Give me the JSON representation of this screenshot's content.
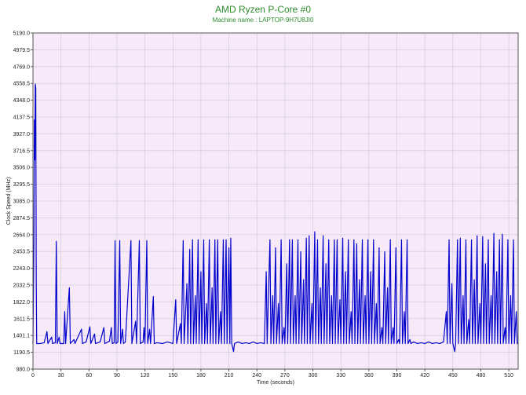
{
  "chart_data": {
    "type": "line",
    "title": "AMD Ryzen P-Core #0",
    "subtitle": "Machine name : LAPTOP-9H7U8JI0",
    "xlabel": "Time (seconds)",
    "ylabel": "Clock Speed (MHz)",
    "xlim": [
      0,
      520
    ],
    "ylim": [
      980.0,
      5190.0
    ],
    "x_ticks": [
      0,
      30,
      60,
      90,
      120,
      150,
      180,
      210,
      240,
      270,
      300,
      330,
      360,
      390,
      420,
      450,
      480,
      510
    ],
    "y_ticks": [
      "980.0",
      "1190.5",
      "1401.1",
      "1611.5",
      "1822.0",
      "2032.5",
      "2243.0",
      "2453.5",
      "2664.0",
      "2874.5",
      "3085.0",
      "3295.5",
      "3506.0",
      "3716.5",
      "3927.0",
      "4137.5",
      "4348.0",
      "4558.5",
      "4769.0",
      "4979.5",
      "5190.0"
    ],
    "grid": true,
    "colors": {
      "line": "#0000cc",
      "plot_background": "#f7e9f7",
      "grid": "#c8c8d8",
      "title": "#2e8b2e"
    },
    "series": [
      {
        "values": [
          [
            0,
            1300
          ],
          [
            1,
            2600
          ],
          [
            1.5,
            4100
          ],
          [
            2,
            3600
          ],
          [
            2.5,
            4550
          ],
          [
            3,
            4500
          ],
          [
            3.5,
            2100
          ],
          [
            4,
            1300
          ],
          [
            8,
            1300
          ],
          [
            12,
            1310
          ],
          [
            15,
            1450
          ],
          [
            16,
            1300
          ],
          [
            20,
            1380
          ],
          [
            21,
            1300
          ],
          [
            24,
            1310
          ],
          [
            25,
            2580
          ],
          [
            26,
            1300
          ],
          [
            28,
            1380
          ],
          [
            29,
            1300
          ],
          [
            33,
            1300
          ],
          [
            34,
            1700
          ],
          [
            35,
            1300
          ],
          [
            39,
            2000
          ],
          [
            40,
            1300
          ],
          [
            44,
            1350
          ],
          [
            45,
            1300
          ],
          [
            52,
            1480
          ],
          [
            53,
            1300
          ],
          [
            57,
            1320
          ],
          [
            61,
            1510
          ],
          [
            62,
            1300
          ],
          [
            66,
            1420
          ],
          [
            67,
            1300
          ],
          [
            72,
            1320
          ],
          [
            76,
            1500
          ],
          [
            77,
            1300
          ],
          [
            82,
            1330
          ],
          [
            84,
            1500
          ],
          [
            85,
            1300
          ],
          [
            87,
            1310
          ],
          [
            88,
            2590
          ],
          [
            89,
            1300
          ],
          [
            91,
            1320
          ],
          [
            93,
            2590
          ],
          [
            94,
            1300
          ],
          [
            96,
            1480
          ],
          [
            97,
            1300
          ],
          [
            99,
            1320
          ],
          [
            105,
            2590
          ],
          [
            106,
            1300
          ],
          [
            110,
            1580
          ],
          [
            111,
            1300
          ],
          [
            114,
            2590
          ],
          [
            115,
            1300
          ],
          [
            118,
            1320
          ],
          [
            119,
            1500
          ],
          [
            120,
            1300
          ],
          [
            122,
            2590
          ],
          [
            123,
            1300
          ],
          [
            125,
            1480
          ],
          [
            126,
            1300
          ],
          [
            129,
            1890
          ],
          [
            130,
            1300
          ],
          [
            133,
            1310
          ],
          [
            139,
            1300
          ],
          [
            144,
            1320
          ],
          [
            150,
            1300
          ],
          [
            153,
            1850
          ],
          [
            154,
            1300
          ],
          [
            158,
            1550
          ],
          [
            159,
            1300
          ],
          [
            161,
            2590
          ],
          [
            162,
            1300
          ],
          [
            165,
            2050
          ],
          [
            166,
            1300
          ],
          [
            168,
            2480
          ],
          [
            169,
            1300
          ],
          [
            171,
            2600
          ],
          [
            172,
            1300
          ],
          [
            174,
            1900
          ],
          [
            175,
            1300
          ],
          [
            177,
            2600
          ],
          [
            178,
            1300
          ],
          [
            180,
            2200
          ],
          [
            181,
            1300
          ],
          [
            183,
            2600
          ],
          [
            184,
            1300
          ],
          [
            186,
            1800
          ],
          [
            187,
            1300
          ],
          [
            189,
            2600
          ],
          [
            190,
            1300
          ],
          [
            192,
            2000
          ],
          [
            193,
            1300
          ],
          [
            195,
            2600
          ],
          [
            196,
            1300
          ],
          [
            198,
            2600
          ],
          [
            199,
            1300
          ],
          [
            201,
            1700
          ],
          [
            202,
            1300
          ],
          [
            204,
            2600
          ],
          [
            205,
            1300
          ],
          [
            207,
            2600
          ],
          [
            208,
            1300
          ],
          [
            210,
            2500
          ],
          [
            211,
            1300
          ],
          [
            212,
            2620
          ],
          [
            213,
            1300
          ],
          [
            215,
            1200
          ],
          [
            216,
            1300
          ],
          [
            220,
            1320
          ],
          [
            224,
            1300
          ],
          [
            228,
            1310
          ],
          [
            232,
            1300
          ],
          [
            236,
            1320
          ],
          [
            240,
            1300
          ],
          [
            244,
            1310
          ],
          [
            248,
            1300
          ],
          [
            250,
            2200
          ],
          [
            251,
            1300
          ],
          [
            254,
            2600
          ],
          [
            255,
            1300
          ],
          [
            257,
            1900
          ],
          [
            258,
            1300
          ],
          [
            260,
            2500
          ],
          [
            261,
            1300
          ],
          [
            263,
            1800
          ],
          [
            264,
            1300
          ],
          [
            266,
            2600
          ],
          [
            267,
            1300
          ],
          [
            269,
            1500
          ],
          [
            270,
            1300
          ],
          [
            272,
            2300
          ],
          [
            273,
            1300
          ],
          [
            275,
            2600
          ],
          [
            276,
            1300
          ],
          [
            278,
            2600
          ],
          [
            279,
            1300
          ],
          [
            281,
            1900
          ],
          [
            282,
            1300
          ],
          [
            284,
            2600
          ],
          [
            285,
            1300
          ],
          [
            287,
            2450
          ],
          [
            288,
            1300
          ],
          [
            290,
            2100
          ],
          [
            291,
            1300
          ],
          [
            293,
            2620
          ],
          [
            294,
            1300
          ],
          [
            296,
            2650
          ],
          [
            297,
            1300
          ],
          [
            299,
            1800
          ],
          [
            300,
            1300
          ],
          [
            302,
            2700
          ],
          [
            303,
            1300
          ],
          [
            305,
            2600
          ],
          [
            306,
            1300
          ],
          [
            308,
            2000
          ],
          [
            309,
            1300
          ],
          [
            311,
            2650
          ],
          [
            312,
            1300
          ],
          [
            314,
            2300
          ],
          [
            315,
            1300
          ],
          [
            317,
            2600
          ],
          [
            318,
            1300
          ],
          [
            320,
            1900
          ],
          [
            321,
            1300
          ],
          [
            323,
            2600
          ],
          [
            324,
            1300
          ],
          [
            326,
            2600
          ],
          [
            327,
            1300
          ],
          [
            329,
            1850
          ],
          [
            330,
            1300
          ],
          [
            332,
            2620
          ],
          [
            333,
            1300
          ],
          [
            335,
            2200
          ],
          [
            336,
            1300
          ],
          [
            338,
            2600
          ],
          [
            339,
            1300
          ],
          [
            341,
            1700
          ],
          [
            342,
            1300
          ],
          [
            344,
            2600
          ],
          [
            345,
            1300
          ],
          [
            347,
            2550
          ],
          [
            348,
            1300
          ],
          [
            350,
            2100
          ],
          [
            351,
            1300
          ],
          [
            353,
            2600
          ],
          [
            354,
            1300
          ],
          [
            356,
            1900
          ],
          [
            357,
            1300
          ],
          [
            359,
            2600
          ],
          [
            360,
            1300
          ],
          [
            362,
            2200
          ],
          [
            363,
            1300
          ],
          [
            365,
            2600
          ],
          [
            366,
            1300
          ],
          [
            368,
            1800
          ],
          [
            369,
            1300
          ],
          [
            371,
            2500
          ],
          [
            372,
            1300
          ],
          [
            374,
            1500
          ],
          [
            375,
            1300
          ],
          [
            377,
            2450
          ],
          [
            378,
            1300
          ],
          [
            380,
            2000
          ],
          [
            381,
            1300
          ],
          [
            383,
            2600
          ],
          [
            384,
            1300
          ],
          [
            386,
            1500
          ],
          [
            387,
            1300
          ],
          [
            389,
            2500
          ],
          [
            390,
            1300
          ],
          [
            392,
            1350
          ],
          [
            393,
            1300
          ],
          [
            395,
            2600
          ],
          [
            396,
            1300
          ],
          [
            398,
            1700
          ],
          [
            399,
            1300
          ],
          [
            401,
            2600
          ],
          [
            402,
            1300
          ],
          [
            404,
            1350
          ],
          [
            405,
            1300
          ],
          [
            408,
            1320
          ],
          [
            412,
            1300
          ],
          [
            416,
            1310
          ],
          [
            420,
            1300
          ],
          [
            424,
            1320
          ],
          [
            428,
            1300
          ],
          [
            432,
            1310
          ],
          [
            436,
            1300
          ],
          [
            440,
            1320
          ],
          [
            443,
            1700
          ],
          [
            444,
            1300
          ],
          [
            446,
            2600
          ],
          [
            447,
            1300
          ],
          [
            449,
            2050
          ],
          [
            450,
            1300
          ],
          [
            452,
            1200
          ],
          [
            453,
            1300
          ],
          [
            455,
            2600
          ],
          [
            456,
            1300
          ],
          [
            458,
            2620
          ],
          [
            459,
            1300
          ],
          [
            461,
            1900
          ],
          [
            462,
            1300
          ],
          [
            464,
            2600
          ],
          [
            465,
            1300
          ],
          [
            467,
            1600
          ],
          [
            468,
            1300
          ],
          [
            470,
            2600
          ],
          [
            471,
            1300
          ],
          [
            473,
            2100
          ],
          [
            474,
            1300
          ],
          [
            476,
            2650
          ],
          [
            477,
            1300
          ],
          [
            479,
            1800
          ],
          [
            480,
            1300
          ],
          [
            482,
            2640
          ],
          [
            483,
            1300
          ],
          [
            485,
            2300
          ],
          [
            486,
            1300
          ],
          [
            488,
            2600
          ],
          [
            489,
            1300
          ],
          [
            491,
            1900
          ],
          [
            492,
            1300
          ],
          [
            494,
            2680
          ],
          [
            495,
            1300
          ],
          [
            497,
            2200
          ],
          [
            498,
            1300
          ],
          [
            500,
            2600
          ],
          [
            501,
            1300
          ],
          [
            503,
            2670
          ],
          [
            504,
            1300
          ],
          [
            506,
            1500
          ],
          [
            507,
            1300
          ],
          [
            509,
            2600
          ],
          [
            510,
            1300
          ],
          [
            512,
            1900
          ],
          [
            513,
            1300
          ],
          [
            515,
            2600
          ],
          [
            516,
            1300
          ],
          [
            518,
            1700
          ],
          [
            519,
            1300
          ],
          [
            520,
            1300
          ]
        ]
      }
    ]
  }
}
